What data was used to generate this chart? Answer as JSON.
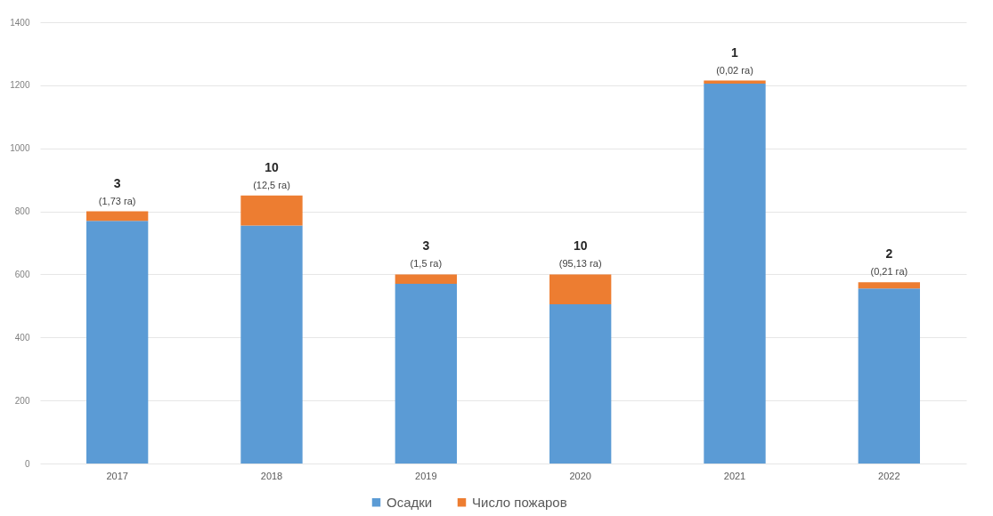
{
  "chart_data": {
    "type": "bar",
    "stacked": true,
    "categories": [
      "2017",
      "2018",
      "2019",
      "2020",
      "2021",
      "2022"
    ],
    "series": [
      {
        "name": "Осадки",
        "color": "#5b9bd5",
        "values": [
          770,
          755,
          570,
          505,
          1205,
          555
        ]
      },
      {
        "name": "Число пожаров",
        "color": "#ed7d31",
        "values": [
          30,
          95,
          30,
          95,
          10,
          20
        ]
      }
    ],
    "ylim": [
      0,
      1400
    ],
    "yticks": [
      0,
      200,
      400,
      600,
      800,
      1000,
      1200,
      1400
    ],
    "grid": "y",
    "legend": "bottom",
    "annotations": [
      {
        "text": "3",
        "x": "2017",
        "y": 800
      },
      {
        "text": "(1,73 га)",
        "x": "2017",
        "y": 800
      },
      {
        "text": "10",
        "x": "2018",
        "y": 850
      },
      {
        "text": "(12,5 га)",
        "x": "2018",
        "y": 850
      },
      {
        "text": "3",
        "x": "2019",
        "y": 600
      },
      {
        "text": "(1,5 га)",
        "x": "2019",
        "y": 600
      },
      {
        "text": "10",
        "x": "2020",
        "y": 600
      },
      {
        "text": "(95,13 га)",
        "x": "2020",
        "y": 600
      },
      {
        "text": "1",
        "x": "2021",
        "y": 1215
      },
      {
        "text": "(0,02 га)",
        "x": "2021",
        "y": 1215
      },
      {
        "text": "2",
        "x": "2022",
        "y": 575
      },
      {
        "text": "(0,21 га)",
        "x": "2022",
        "y": 575
      }
    ]
  }
}
